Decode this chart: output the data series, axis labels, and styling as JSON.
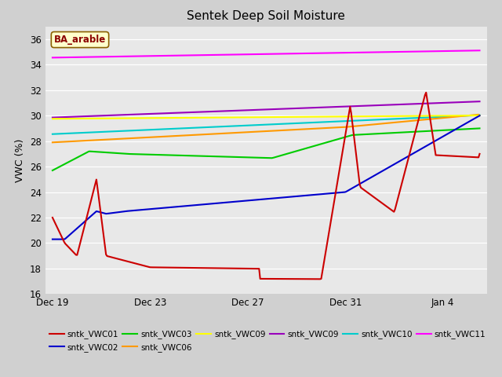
{
  "title": "Sentek Deep Soil Moisture",
  "ylabel": "VWC (%)",
  "annotation": "BA_arable",
  "ylim": [
    16,
    37
  ],
  "yticks": [
    16,
    18,
    20,
    22,
    24,
    26,
    28,
    30,
    32,
    34,
    36
  ],
  "fig_bg": "#d0d0d0",
  "plot_bg": "#e8e8e8",
  "title_fontsize": 11,
  "legend_entries": [
    {
      "label": "sntk_VWC01",
      "color": "#cc0000",
      "linestyle": "-"
    },
    {
      "label": "sntk_VWC02",
      "color": "#0000cc",
      "linestyle": "-"
    },
    {
      "label": "sntk_VWC03",
      "color": "#00cc00",
      "linestyle": "-"
    },
    {
      "label": "sntk_VWC06",
      "color": "#ff9900",
      "linestyle": "-"
    },
    {
      "label": "sntk_VWC09",
      "color": "#ffff00",
      "linestyle": "-"
    },
    {
      "label": "sntk_VWC09",
      "color": "#9900bb",
      "linestyle": "-"
    },
    {
      "label": "sntk_VWC10",
      "color": "#00cccc",
      "linestyle": "-"
    },
    {
      "label": "sntk_VWC11",
      "color": "#ff00ff",
      "linestyle": "-"
    }
  ],
  "x_tick_labels": [
    "Dec 19",
    "Dec 23",
    "Dec 27",
    "Dec 31",
    "Jan 4"
  ],
  "x_tick_positions": [
    0,
    4,
    8,
    12,
    16
  ]
}
